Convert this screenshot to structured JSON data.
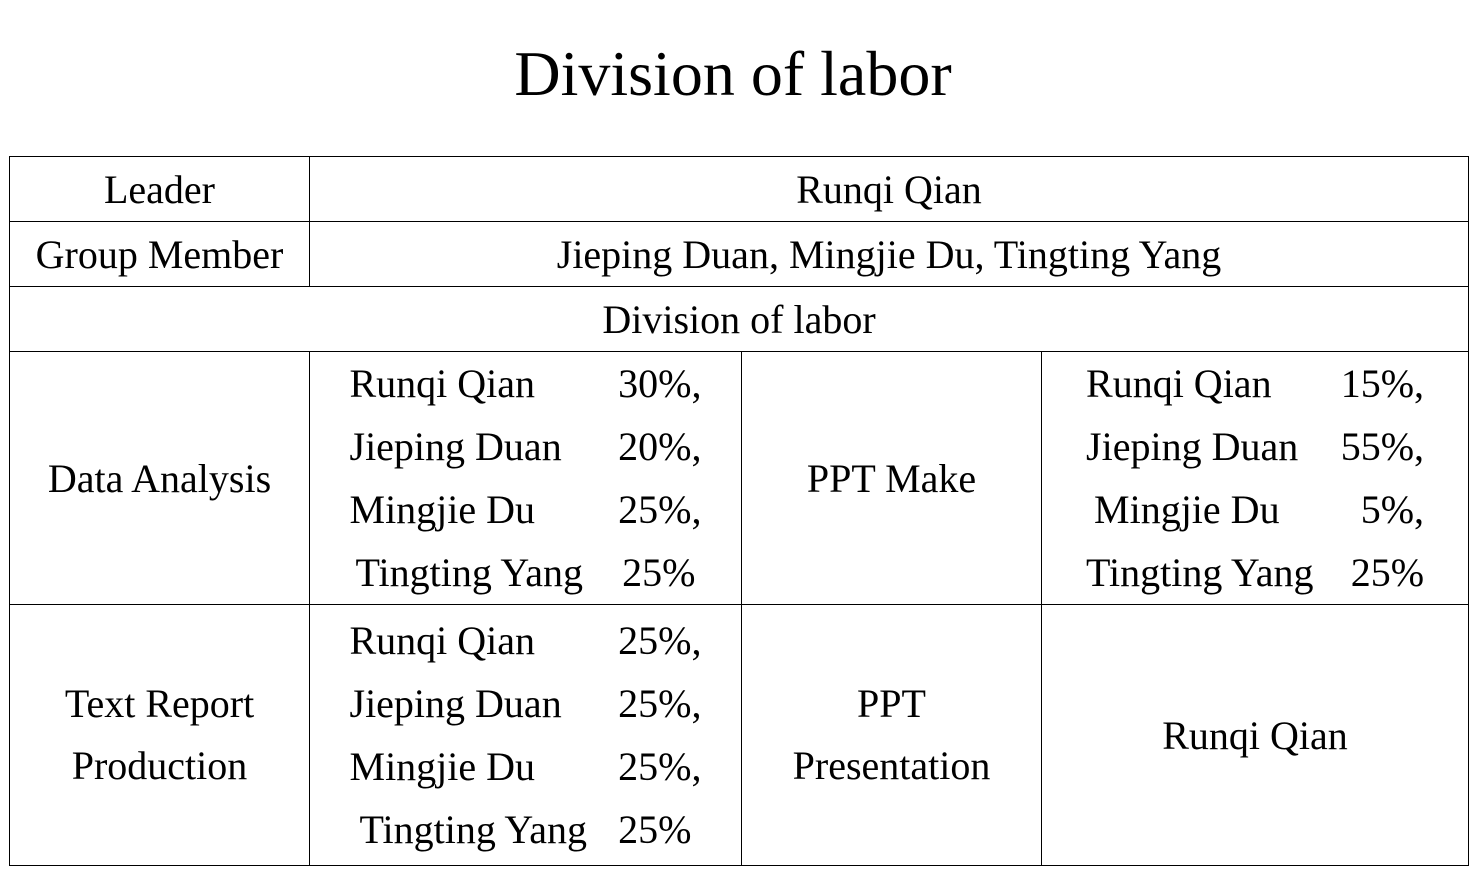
{
  "title": "Division of labor",
  "table": {
    "leader_label": "Leader",
    "leader_value": "Runqi Qian",
    "member_label": "Group Member",
    "member_value": "Jieping Duan, Mingjie Du, Tingting Yang",
    "section_header": "Division of labor",
    "data_analysis": {
      "label": "Data Analysis",
      "allocations": [
        {
          "name": "Runqi Qian",
          "pct": "30%,"
        },
        {
          "name": "Jieping Duan",
          "pct": "20%,"
        },
        {
          "name": "Mingjie Du",
          "pct": "25%,"
        },
        {
          "name": "Tingting Yang",
          "pct": "25%"
        }
      ]
    },
    "ppt_make": {
      "label": "PPT Make",
      "allocations": [
        {
          "name": "Runqi Qian",
          "pct": "15%,"
        },
        {
          "name": "Jieping Duan",
          "pct": "55%,"
        },
        {
          "name": "Mingjie Du",
          "pct": "5%,"
        },
        {
          "name": "Tingting Yang",
          "pct": "25%"
        }
      ]
    },
    "text_report": {
      "label_line1": "Text Report",
      "label_line2": "Production",
      "allocations": [
        {
          "name": "Runqi Qian",
          "pct": "25%,"
        },
        {
          "name": "Jieping Duan",
          "pct": "25%,"
        },
        {
          "name": "Mingjie Du",
          "pct": "25%,"
        },
        {
          "name": "Tingting Yang",
          "pct": "25%"
        }
      ]
    },
    "ppt_presentation": {
      "label_line1": "PPT",
      "label_line2": "Presentation",
      "value": "Runqi Qian"
    }
  }
}
